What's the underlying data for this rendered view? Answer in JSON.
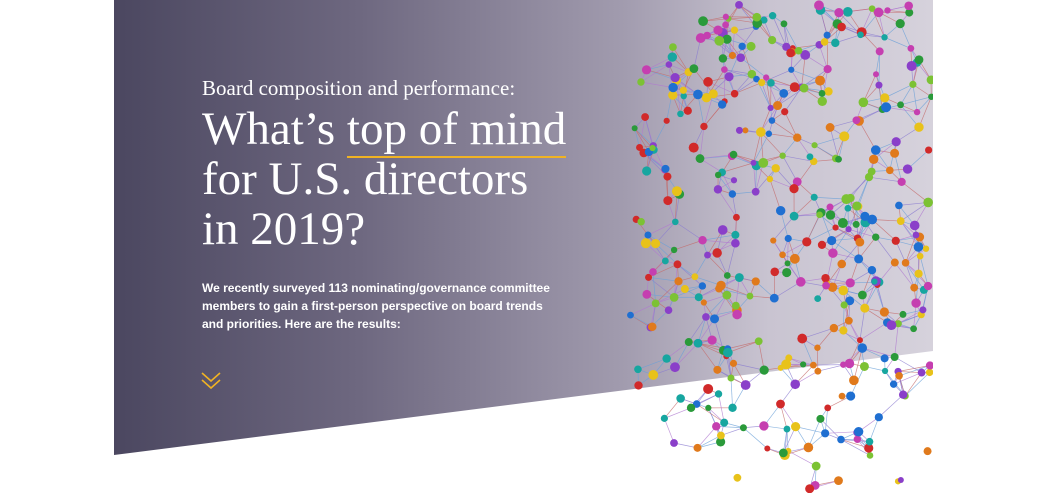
{
  "header": {
    "kicker": "Board composition and performance:",
    "title": {
      "before": "What’s",
      "highlight": "top of mind",
      "line2": "for U.S. directors",
      "line3": "in 2019?"
    },
    "intro": [
      "We recently surveyed 113 nominating/governance committee",
      "members to gain a first-person perspective on board trends",
      "and priorities. Here are the results:"
    ]
  }
}
